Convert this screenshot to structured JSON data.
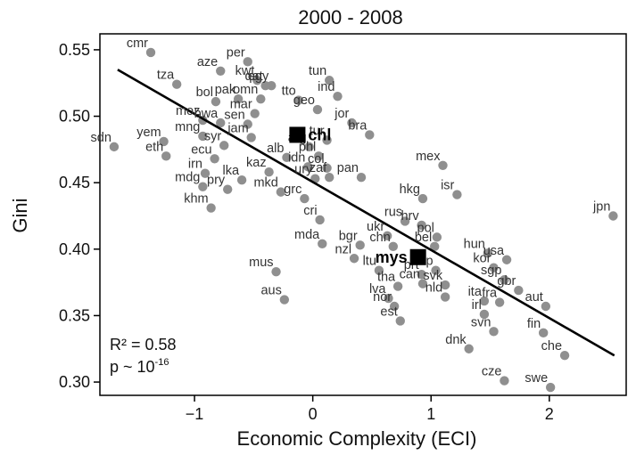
{
  "chart_data": {
    "type": "scatter",
    "title": "2000 - 2008",
    "xlabel": "Economic Complexity (ECI)",
    "ylabel": "Gini",
    "xlim": [
      -1.8,
      2.65
    ],
    "ylim": [
      0.29,
      0.562
    ],
    "xticks": [
      -1,
      0,
      1,
      2
    ],
    "xtick_labels": [
      "−1",
      "0",
      "1",
      "2"
    ],
    "yticks": [
      0.3,
      0.35,
      0.4,
      0.45,
      0.5,
      0.55
    ],
    "ytick_labels": [
      "0.30",
      "0.35",
      "0.40",
      "0.45",
      "0.50",
      "0.55"
    ],
    "grid": false,
    "legend": "none",
    "point_color": "#8f8f8f",
    "highlight_color": "#000000",
    "fit_line": {
      "x": [
        -1.65,
        2.55
      ],
      "y": [
        0.535,
        0.32
      ],
      "color": "#000000"
    },
    "stats": {
      "r2_text": "R² = 0.58",
      "p_base": "p ~ 10",
      "p_exp": "-16"
    },
    "points": [
      {
        "label": "cmr",
        "x": -1.37,
        "y": 0.548
      },
      {
        "label": "tza",
        "x": -1.15,
        "y": 0.524
      },
      {
        "label": "aze",
        "x": -0.78,
        "y": 0.534
      },
      {
        "label": "per",
        "x": -0.55,
        "y": 0.541
      },
      {
        "label": "kwt",
        "x": -0.47,
        "y": 0.527
      },
      {
        "label": "egy",
        "x": -0.35,
        "y": 0.523
      },
      {
        "label": "tun",
        "x": 0.14,
        "y": 0.527
      },
      {
        "label": "bol",
        "x": -0.82,
        "y": 0.511
      },
      {
        "label": "qat",
        "x": -0.4,
        "y": 0.523
      },
      {
        "label": "ind",
        "x": 0.21,
        "y": 0.515
      },
      {
        "label": "pak",
        "x": -0.63,
        "y": 0.513
      },
      {
        "label": "omn",
        "x": -0.44,
        "y": 0.513
      },
      {
        "label": "tto",
        "x": -0.12,
        "y": 0.512
      },
      {
        "label": "geo",
        "x": 0.04,
        "y": 0.505
      },
      {
        "label": "moz",
        "x": -0.93,
        "y": 0.497
      },
      {
        "label": "mar",
        "x": -0.49,
        "y": 0.502
      },
      {
        "label": "bwa",
        "x": -0.78,
        "y": 0.495
      },
      {
        "label": "sen",
        "x": -0.55,
        "y": 0.494
      },
      {
        "label": "jor",
        "x": 0.33,
        "y": 0.495
      },
      {
        "label": "yem",
        "x": -1.26,
        "y": 0.481
      },
      {
        "label": "mng",
        "x": -0.93,
        "y": 0.485
      },
      {
        "label": "jam",
        "x": -0.52,
        "y": 0.484
      },
      {
        "label": "bra",
        "x": 0.48,
        "y": 0.486
      },
      {
        "label": "sdn",
        "x": -1.68,
        "y": 0.477
      },
      {
        "label": "eth",
        "x": -1.24,
        "y": 0.47
      },
      {
        "label": "syr",
        "x": -0.75,
        "y": 0.478
      },
      {
        "label": "arg",
        "x": -0.03,
        "y": 0.477
      },
      {
        "label": "tur",
        "x": 0.12,
        "y": 0.482
      },
      {
        "label": "ecu",
        "x": -0.83,
        "y": 0.468
      },
      {
        "label": "alb",
        "x": -0.22,
        "y": 0.469
      },
      {
        "label": "phl",
        "x": 0.05,
        "y": 0.47
      },
      {
        "label": "idn",
        "x": -0.04,
        "y": 0.462
      },
      {
        "label": "col",
        "x": 0.12,
        "y": 0.461
      },
      {
        "label": "mex",
        "x": 1.1,
        "y": 0.463
      },
      {
        "label": "irn",
        "x": -0.91,
        "y": 0.457
      },
      {
        "label": "lka",
        "x": -0.6,
        "y": 0.452
      },
      {
        "label": "kaz",
        "x": -0.37,
        "y": 0.458
      },
      {
        "label": "ury",
        "x": 0.02,
        "y": 0.453
      },
      {
        "label": "zaf",
        "x": 0.14,
        "y": 0.454
      },
      {
        "label": "pan",
        "x": 0.41,
        "y": 0.454
      },
      {
        "label": "mdg",
        "x": -0.93,
        "y": 0.447
      },
      {
        "label": "pry",
        "x": -0.72,
        "y": 0.445
      },
      {
        "label": "mkd",
        "x": -0.27,
        "y": 0.443
      },
      {
        "label": "hkg",
        "x": 0.93,
        "y": 0.438
      },
      {
        "label": "isr",
        "x": 1.22,
        "y": 0.441
      },
      {
        "label": "grc",
        "x": -0.07,
        "y": 0.438
      },
      {
        "label": "khm",
        "x": -0.86,
        "y": 0.431
      },
      {
        "label": "jpn",
        "x": 2.54,
        "y": 0.425
      },
      {
        "label": "cri",
        "x": 0.06,
        "y": 0.422
      },
      {
        "label": "rus",
        "x": 0.78,
        "y": 0.421
      },
      {
        "label": "hrv",
        "x": 0.92,
        "y": 0.418
      },
      {
        "label": "ukr",
        "x": 0.63,
        "y": 0.41
      },
      {
        "label": "pol",
        "x": 1.05,
        "y": 0.409
      },
      {
        "label": "mda",
        "x": 0.08,
        "y": 0.404
      },
      {
        "label": "bgr",
        "x": 0.4,
        "y": 0.403
      },
      {
        "label": "chn",
        "x": 0.68,
        "y": 0.402
      },
      {
        "label": "bel",
        "x": 1.03,
        "y": 0.402
      },
      {
        "label": "hun",
        "x": 1.48,
        "y": 0.397
      },
      {
        "label": "nzl",
        "x": 0.35,
        "y": 0.393
      },
      {
        "label": "usa",
        "x": 1.64,
        "y": 0.392
      },
      {
        "label": "kor",
        "x": 1.53,
        "y": 0.386
      },
      {
        "label": "ltu",
        "x": 0.56,
        "y": 0.384
      },
      {
        "label": "esp",
        "x": 1.04,
        "y": 0.384
      },
      {
        "label": "prt",
        "x": 0.92,
        "y": 0.381
      },
      {
        "label": "mus",
        "x": -0.31,
        "y": 0.383
      },
      {
        "label": "sgp",
        "x": 1.62,
        "y": 0.377
      },
      {
        "label": "tha",
        "x": 0.72,
        "y": 0.372
      },
      {
        "label": "can",
        "x": 0.93,
        "y": 0.374
      },
      {
        "label": "svk",
        "x": 1.12,
        "y": 0.373
      },
      {
        "label": "gbr",
        "x": 1.74,
        "y": 0.369
      },
      {
        "label": "aus",
        "x": -0.24,
        "y": 0.362
      },
      {
        "label": "lva",
        "x": 0.64,
        "y": 0.363
      },
      {
        "label": "nld",
        "x": 1.12,
        "y": 0.364
      },
      {
        "label": "ita",
        "x": 1.45,
        "y": 0.361
      },
      {
        "label": "fra",
        "x": 1.58,
        "y": 0.36
      },
      {
        "label": "aut",
        "x": 1.97,
        "y": 0.357
      },
      {
        "label": "nor",
        "x": 0.69,
        "y": 0.357
      },
      {
        "label": "irl",
        "x": 1.45,
        "y": 0.351
      },
      {
        "label": "est",
        "x": 0.74,
        "y": 0.346
      },
      {
        "label": "fin",
        "x": 1.95,
        "y": 0.337
      },
      {
        "label": "svn",
        "x": 1.53,
        "y": 0.338
      },
      {
        "label": "dnk",
        "x": 1.32,
        "y": 0.325
      },
      {
        "label": "che",
        "x": 2.13,
        "y": 0.32
      },
      {
        "label": "cze",
        "x": 1.62,
        "y": 0.301
      },
      {
        "label": "swe",
        "x": 2.01,
        "y": 0.296
      }
    ],
    "highlights": [
      {
        "label": "chl",
        "x": -0.13,
        "y": 0.486
      },
      {
        "label": "mys",
        "x": 0.89,
        "y": 0.394
      }
    ]
  }
}
